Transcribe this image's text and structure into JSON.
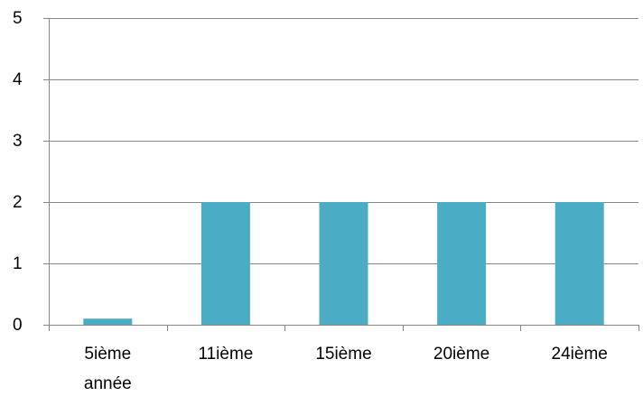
{
  "chart_data": {
    "type": "bar",
    "categories": [
      [
        "5ième",
        "année"
      ],
      [
        "11ième"
      ],
      [
        "15ième"
      ],
      [
        "20ième"
      ],
      [
        "24ième"
      ]
    ],
    "values": [
      0.1,
      2,
      2,
      2,
      2
    ],
    "yticks": [
      "0",
      "1",
      "2",
      "3",
      "4",
      "5"
    ],
    "ylim": [
      0,
      5
    ],
    "title": "",
    "xlabel": "",
    "ylabel": "",
    "grid": true,
    "legend": "none",
    "bar_color": "#4BACC6",
    "grid_color": "#878787",
    "axis_color": "#878787"
  }
}
